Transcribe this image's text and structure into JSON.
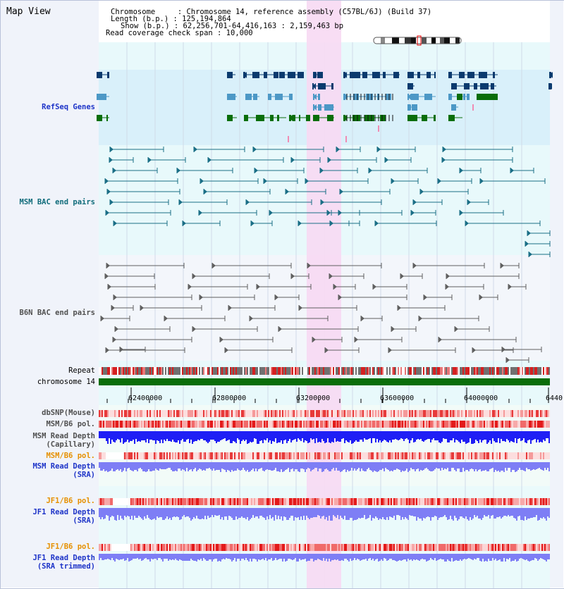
{
  "app": {
    "title": "Map View"
  },
  "info": {
    "line1": "Chromosome     : Chromosome 14, reference assembly (C57BL/6J) (Build 37)",
    "line2": "Length (b.p.) : 125,194,864",
    "line3": "Show (b.p.) : 62,256,701-64,416,163 : 2,159,463 bp",
    "line4": "Read coverage check span : 10,000"
  },
  "tracks": {
    "refseq": "RefSeq Genes",
    "msm_bac": "MSM BAC end pairs",
    "b6n_bac": "B6N BAC end pairs",
    "repeat": "Repeat",
    "chromosome": "chromosome 14",
    "dbsnp": "dbSNP(Mouse)",
    "msm_b6_pol": "MSM/B6 pol.",
    "msm_depth_1": "MSM Read Depth",
    "msm_depth_1b": "(Capillary)",
    "msm_b6_pol_2": "MSM/B6 pol.",
    "msm_depth_2": "MSM Read Depth",
    "msm_depth_2b": "(SRA)",
    "jf1_b6_pol": "JF1/B6 pol.",
    "jf1_depth": "JF1 Read Depth",
    "jf1_depth_b": "(SRA)",
    "jf1_b6_pol_2": "JF1/B6 pol.",
    "jf1_depth_2": "JF1 Read Depth",
    "jf1_depth_2b": "(SRA trimmed)"
  },
  "axis": {
    "ticks": [
      "62400000",
      "62800000",
      "63200000",
      "63600000",
      "64000000",
      "6440"
    ]
  },
  "colors": {
    "highlight": "#f7d9f3",
    "refseq_bg": "#d9f0fa",
    "bac_bg": "#e6f9fb",
    "gene_dark": "#0a3a6e",
    "gene_light": "#4c98c6",
    "gene_green": "#0a6e0a",
    "chromosome_bar": "#0a6e0a",
    "depth_blue": "#1f1ff5",
    "depth_light": "#7e7ef5"
  }
}
